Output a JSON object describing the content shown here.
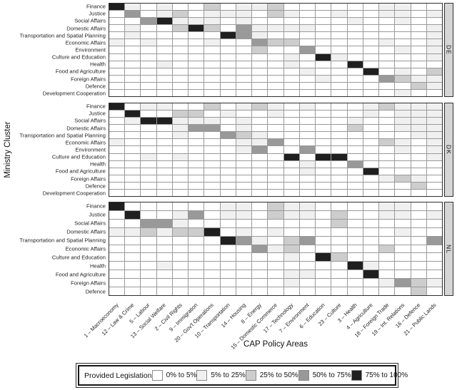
{
  "figure": {
    "xlabel": "CAP Policy Areas",
    "ylabel": "Ministry Cluster"
  },
  "legend": {
    "title": "Provided Legislation",
    "items": [
      {
        "label": "0% to 5%",
        "color": "#ffffff"
      },
      {
        "label": "5% to 25%",
        "color": "#f0f0f0"
      },
      {
        "label": "25% to 50%",
        "color": "#cdcdcd"
      },
      {
        "label": "50% to 75%",
        "color": "#999999"
      },
      {
        "label": "75% to 100%",
        "color": "#1f1f1f"
      }
    ]
  },
  "chart_data": {
    "type": "heatmap",
    "title": "",
    "xlabel": "CAP Policy Areas",
    "ylabel": "Ministry Cluster",
    "legend_position": "bottom",
    "value_scale": [
      "0% to 5%",
      "5% to 25%",
      "25% to 50%",
      "50% to 75%",
      "75% to 100%"
    ],
    "palette": [
      "#ffffff",
      "#f0f0f0",
      "#cdcdcd",
      "#999999",
      "#1f1f1f"
    ],
    "grid_line_color": "#9a9a9a",
    "columns": [
      "1 – Macroeconomy",
      "12 – Law & Crime",
      "5 – Labour",
      "13 – Social Welfare",
      "2 – Civil Rights",
      "9 – Immigration",
      "20 – Gov't Operations",
      "10 – Transportation",
      "14 – Housing",
      "8 – Energy",
      "15 – Domestic Commerce",
      "17 – Technology",
      "7 – Environment",
      "6 – Education",
      "23 – Culture",
      "3 – Health",
      "4 – Agriculture",
      "18 – Foreign Trade",
      "19 – Int. Relations",
      "16 – Defence",
      "21 – Public Lands"
    ],
    "panels": [
      {
        "label": "DE",
        "rows": [
          {
            "label": "Finance",
            "values": [
              4,
              1,
              0,
              1,
              0,
              0,
              2,
              0,
              1,
              1,
              2,
              0,
              0,
              0,
              0,
              0,
              0,
              1,
              1,
              0,
              0
            ]
          },
          {
            "label": "Justice",
            "values": [
              0,
              3,
              0,
              1,
              2,
              0,
              1,
              1,
              1,
              0,
              2,
              1,
              0,
              0,
              1,
              0,
              0,
              1,
              1,
              0,
              1
            ]
          },
          {
            "label": "Social Affairs",
            "values": [
              0,
              0,
              3,
              4,
              1,
              1,
              1,
              0,
              1,
              0,
              0,
              0,
              0,
              0,
              0,
              1,
              0,
              0,
              1,
              0,
              0
            ]
          },
          {
            "label": "Domestic Affairs",
            "values": [
              0,
              1,
              0,
              0,
              2,
              4,
              2,
              0,
              3,
              1,
              1,
              1,
              1,
              0,
              0,
              0,
              0,
              0,
              0,
              0,
              1
            ]
          },
          {
            "label": "Transportation and Spatial Planning",
            "values": [
              0,
              1,
              0,
              0,
              0,
              0,
              0,
              4,
              3,
              1,
              0,
              0,
              0,
              0,
              0,
              0,
              0,
              0,
              0,
              0,
              1
            ]
          },
          {
            "label": "Economic Affairs",
            "values": [
              1,
              0,
              1,
              0,
              0,
              0,
              1,
              0,
              0,
              3,
              2,
              2,
              0,
              0,
              0,
              0,
              0,
              1,
              0,
              0,
              1
            ]
          },
          {
            "label": "Environment",
            "values": [
              0,
              0,
              0,
              0,
              0,
              0,
              0,
              0,
              0,
              2,
              0,
              0,
              3,
              0,
              0,
              0,
              0,
              0,
              1,
              0,
              1
            ]
          },
          {
            "label": "Culture and Education",
            "values": [
              0,
              0,
              0,
              0,
              0,
              0,
              0,
              0,
              0,
              0,
              0,
              1,
              0,
              4,
              1,
              0,
              0,
              0,
              0,
              0,
              1
            ]
          },
          {
            "label": "Health",
            "values": [
              0,
              0,
              0,
              1,
              0,
              0,
              0,
              0,
              0,
              0,
              0,
              1,
              0,
              0,
              0,
              4,
              0,
              0,
              0,
              0,
              0
            ]
          },
          {
            "label": "Food and Agriculture",
            "values": [
              0,
              0,
              0,
              0,
              0,
              0,
              0,
              0,
              0,
              0,
              0,
              0,
              1,
              0,
              0,
              0,
              4,
              0,
              1,
              0,
              2
            ]
          },
          {
            "label": "Foreign Affairs",
            "values": [
              0,
              0,
              0,
              0,
              0,
              0,
              0,
              0,
              0,
              0,
              0,
              0,
              0,
              1,
              0,
              0,
              0,
              3,
              2,
              1,
              1
            ]
          },
          {
            "label": "Defence",
            "values": [
              0,
              0,
              0,
              0,
              0,
              0,
              0,
              0,
              0,
              0,
              0,
              0,
              0,
              0,
              0,
              0,
              0,
              0,
              0,
              2,
              1
            ]
          },
          {
            "label": "Development Cooperation",
            "values": [
              0,
              0,
              0,
              0,
              0,
              0,
              0,
              0,
              0,
              0,
              0,
              0,
              0,
              0,
              0,
              0,
              0,
              0,
              1,
              0,
              0
            ]
          }
        ]
      },
      {
        "label": "DK",
        "rows": [
          {
            "label": "Finance",
            "values": [
              4,
              0,
              1,
              1,
              0,
              0,
              2,
              0,
              1,
              2,
              1,
              0,
              1,
              0,
              0,
              0,
              1,
              2,
              1,
              1,
              1
            ]
          },
          {
            "label": "Justice",
            "values": [
              0,
              4,
              0,
              0,
              2,
              2,
              0,
              1,
              0,
              0,
              1,
              0,
              0,
              0,
              0,
              0,
              1,
              0,
              1,
              1,
              1
            ]
          },
          {
            "label": "Social Affairs",
            "values": [
              0,
              1,
              4,
              4,
              1,
              1,
              1,
              0,
              1,
              0,
              0,
              0,
              0,
              0,
              0,
              1,
              0,
              0,
              1,
              1,
              1
            ]
          },
          {
            "label": "Domestic Affairs",
            "values": [
              0,
              0,
              0,
              0,
              1,
              3,
              3,
              0,
              1,
              0,
              0,
              0,
              0,
              0,
              0,
              2,
              0,
              0,
              1,
              1,
              1
            ]
          },
          {
            "label": "Transportation and Spatial Planning",
            "values": [
              0,
              0,
              0,
              0,
              1,
              0,
              0,
              3,
              2,
              1,
              0,
              0,
              0,
              0,
              0,
              0,
              0,
              0,
              0,
              1,
              1
            ]
          },
          {
            "label": "Economic Affairs",
            "values": [
              1,
              0,
              0,
              0,
              0,
              0,
              0,
              0,
              1,
              1,
              3,
              0,
              0,
              0,
              0,
              0,
              0,
              2,
              1,
              0,
              1
            ]
          },
          {
            "label": "Environment",
            "values": [
              0,
              0,
              0,
              0,
              0,
              0,
              0,
              0,
              1,
              3,
              0,
              0,
              3,
              0,
              0,
              0,
              0,
              0,
              1,
              0,
              1
            ]
          },
          {
            "label": "Culture and Education",
            "values": [
              0,
              0,
              1,
              0,
              1,
              0,
              0,
              0,
              0,
              0,
              0,
              4,
              0,
              4,
              4,
              0,
              0,
              0,
              0,
              0,
              1
            ]
          },
          {
            "label": "Health",
            "values": [
              0,
              0,
              0,
              0,
              0,
              0,
              0,
              0,
              0,
              0,
              0,
              0,
              1,
              0,
              0,
              3,
              0,
              0,
              0,
              0,
              0
            ]
          },
          {
            "label": "Food and Agriculture",
            "values": [
              0,
              0,
              0,
              0,
              0,
              0,
              0,
              0,
              0,
              0,
              0,
              0,
              1,
              0,
              0,
              0,
              4,
              0,
              0,
              0,
              0
            ]
          },
          {
            "label": "Foreign Affairs",
            "values": [
              0,
              0,
              0,
              0,
              0,
              0,
              0,
              0,
              0,
              0,
              0,
              0,
              0,
              0,
              0,
              0,
              0,
              1,
              2,
              1,
              0
            ]
          },
          {
            "label": "Defence",
            "values": [
              0,
              0,
              0,
              0,
              0,
              0,
              0,
              0,
              0,
              0,
              0,
              0,
              0,
              0,
              0,
              0,
              0,
              0,
              0,
              2,
              0
            ]
          },
          {
            "label": "Development Cooperation",
            "values": [
              0,
              0,
              0,
              0,
              0,
              0,
              0,
              0,
              0,
              0,
              0,
              0,
              0,
              0,
              0,
              0,
              0,
              0,
              0,
              0,
              0
            ]
          }
        ]
      },
      {
        "label": "NL",
        "rows": [
          {
            "label": "Finance",
            "values": [
              4,
              0,
              0,
              0,
              0,
              0,
              0,
              1,
              1,
              0,
              2,
              1,
              1,
              0,
              0,
              0,
              0,
              1,
              1,
              0,
              0
            ]
          },
          {
            "label": "Justice",
            "values": [
              0,
              4,
              0,
              0,
              1,
              3,
              0,
              1,
              1,
              0,
              2,
              1,
              1,
              0,
              2,
              0,
              0,
              1,
              1,
              0,
              1
            ]
          },
          {
            "label": "Social Affairs",
            "values": [
              0,
              0,
              3,
              3,
              1,
              0,
              0,
              0,
              0,
              0,
              0,
              0,
              0,
              0,
              2,
              0,
              0,
              0,
              0,
              0,
              0
            ]
          },
          {
            "label": "Domestic Affairs",
            "values": [
              1,
              1,
              2,
              1,
              2,
              2,
              4,
              0,
              1,
              0,
              1,
              0,
              0,
              0,
              0,
              0,
              0,
              0,
              1,
              0,
              0
            ]
          },
          {
            "label": "Transportation and Spatial Planning",
            "values": [
              0,
              0,
              0,
              0,
              0,
              0,
              0,
              4,
              3,
              1,
              0,
              2,
              3,
              0,
              0,
              0,
              0,
              0,
              0,
              0,
              3
            ]
          },
          {
            "label": "Economic Affairs",
            "values": [
              0,
              0,
              0,
              0,
              0,
              0,
              0,
              0,
              0,
              3,
              1,
              2,
              0,
              0,
              0,
              0,
              0,
              2,
              0,
              0,
              0
            ]
          },
          {
            "label": "Culture and Education",
            "values": [
              0,
              0,
              0,
              0,
              0,
              0,
              0,
              0,
              0,
              0,
              0,
              1,
              0,
              4,
              2,
              0,
              0,
              0,
              0,
              0,
              0
            ]
          },
          {
            "label": "Health",
            "values": [
              0,
              0,
              0,
              1,
              0,
              0,
              0,
              0,
              0,
              0,
              0,
              0,
              0,
              0,
              0,
              4,
              1,
              0,
              0,
              0,
              0
            ]
          },
          {
            "label": "Food and Agriculture",
            "values": [
              0,
              0,
              0,
              0,
              0,
              0,
              0,
              0,
              0,
              0,
              0,
              1,
              1,
              0,
              0,
              0,
              4,
              0,
              0,
              0,
              0
            ]
          },
          {
            "label": "Foreign Affairs",
            "values": [
              0,
              0,
              0,
              0,
              0,
              0,
              0,
              0,
              0,
              0,
              0,
              1,
              0,
              0,
              0,
              0,
              0,
              1,
              3,
              2,
              1
            ]
          },
          {
            "label": "Defence",
            "values": [
              0,
              0,
              0,
              0,
              0,
              0,
              0,
              0,
              0,
              0,
              0,
              0,
              0,
              0,
              0,
              0,
              0,
              0,
              0,
              2,
              0
            ]
          }
        ]
      }
    ]
  }
}
